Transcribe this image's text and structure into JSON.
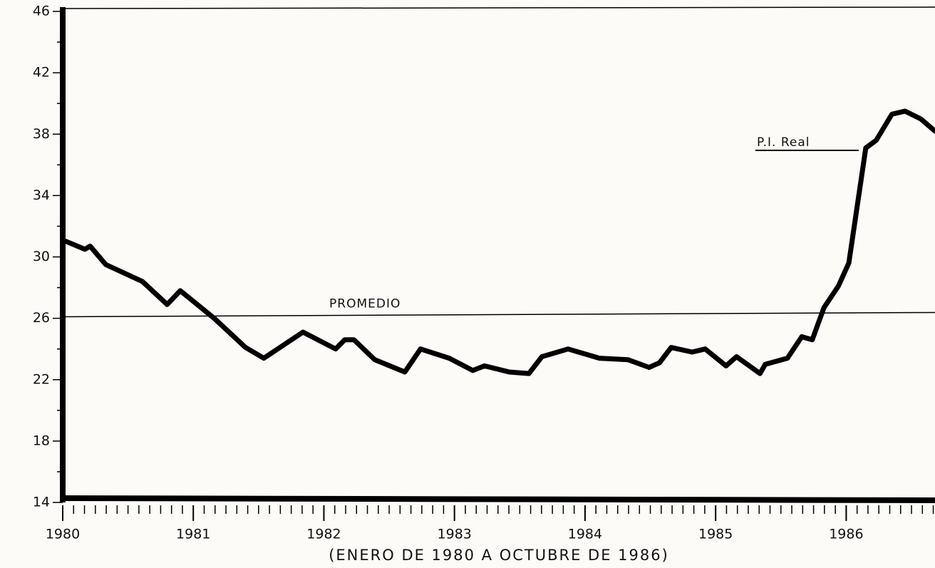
{
  "chart_data": {
    "type": "line",
    "x_label": "(ENERO DE 1980 A OCTUBRE DE 1986)",
    "xlim": [
      1980,
      1986.68
    ],
    "xticks": [
      1980,
      1981,
      1982,
      1983,
      1984,
      1985,
      1986
    ],
    "ylim": [
      14,
      46
    ],
    "yticks": [
      14,
      18,
      22,
      26,
      30,
      34,
      38,
      42,
      46
    ],
    "series": [
      {
        "name": "P.I. Real",
        "color": "#000000",
        "x": [
          1980.0,
          1980.17,
          1980.21,
          1980.33,
          1980.61,
          1980.8,
          1980.9,
          1981.16,
          1981.4,
          1981.54,
          1981.84,
          1982.09,
          1982.16,
          1982.23,
          1982.39,
          1982.62,
          1982.74,
          1982.96,
          1983.14,
          1983.23,
          1983.42,
          1983.57,
          1983.67,
          1983.87,
          1984.11,
          1984.33,
          1984.49,
          1984.57,
          1984.66,
          1984.82,
          1984.92,
          1985.08,
          1985.16,
          1985.34,
          1985.38,
          1985.55,
          1985.66,
          1985.74,
          1985.83,
          1985.94,
          1986.02,
          1986.15,
          1986.23,
          1986.35,
          1986.45,
          1986.57,
          1986.68
        ],
        "values": [
          31.1,
          30.5,
          30.7,
          29.5,
          28.4,
          26.9,
          27.8,
          26.0,
          24.1,
          23.4,
          25.1,
          24.0,
          24.6,
          24.6,
          23.3,
          22.5,
          24.0,
          23.4,
          22.6,
          22.9,
          22.5,
          22.4,
          23.5,
          24.0,
          23.4,
          23.3,
          22.8,
          23.1,
          24.1,
          23.8,
          24.0,
          22.9,
          23.5,
          22.4,
          23.0,
          23.4,
          24.8,
          24.6,
          26.7,
          28.1,
          29.6,
          37.1,
          37.6,
          39.3,
          39.5,
          39.0,
          38.2
        ]
      }
    ],
    "reference_line": {
      "label": "PROMEDIO",
      "value": 26.1
    }
  }
}
